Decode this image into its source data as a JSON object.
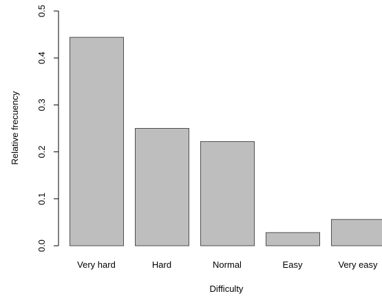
{
  "chart_data": {
    "type": "bar",
    "title": "",
    "xlabel": "Difficulty",
    "ylabel": "Relative frecuency",
    "categories": [
      "Very hard",
      "Hard",
      "Normal",
      "Easy",
      "Very easy"
    ],
    "values": [
      0.444,
      0.25,
      0.222,
      0.028,
      0.056
    ],
    "ylim": [
      0,
      0.5
    ],
    "yticks": [
      0.0,
      0.1,
      0.2,
      0.3,
      0.4,
      0.5
    ],
    "ytick_labels": [
      "0.0",
      "0.1",
      "0.2",
      "0.3",
      "0.4",
      "0.5"
    ],
    "grid": false,
    "legend": "none",
    "colors": {
      "bar_fill": "#bebebe",
      "bar_stroke": "#4d4d4d",
      "axis": "#000000"
    }
  }
}
